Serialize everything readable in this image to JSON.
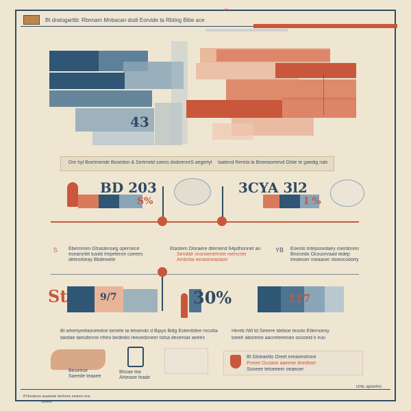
{
  "header": {
    "logo_text": "",
    "title": "Bt dratogarttb: Rbnnam Mnbacan dodi Eorvide ta Rbting Bibe ace",
    "top_label": "TF",
    "right_line_text": ""
  },
  "caption_row": {
    "left": "Dre hyl Boetmende Bosedon & Sertmeld soeos dodoenreS aegerlyt tumer g",
    "right": "Iaatend Rereta la Bneeaoreevd Ghlie te gaedig nalee 1"
  },
  "stats_row": {
    "left_big": "BD 203",
    "left_pct": "S%",
    "right_big": "3CYA 3l2",
    "right_pct": "I %"
  },
  "mid_text": {
    "left_heading": "S",
    "left_lines": [
      "Ebernmen Gfrastenseg opernece",
      "esearsrtet tuseb trepetenre coeees",
      "deteorbeay Bbdeoiete"
    ],
    "center_lines": [
      "Etastem Dloraere dtemend 64pdhonnet aneonm",
      "Sendalr vnsnoenehrste roencnet",
      "Ambntia eerastneaotam"
    ],
    "right_heading": "YB",
    "right_lines": [
      "Eoenlo tntepsoedaey roerdonres ea",
      "Bnocedo Ocouorvaad iedep",
      "treateoer meaaoer stoeocodorty"
    ]
  },
  "band2": {
    "left_big": "St",
    "left_num": "9/7",
    "mid_big": "30%",
    "right_num": "117"
  },
  "lower_text": {
    "left": [
      "Bt whertyeebioneedne beriele ta tetsendo d Bipyo Bdlg Eotenttdee rncotlad",
      "taedae taesdenne rrheo bededio reeoedoneer totsa deoeroar aeees"
    ],
    "right": [
      "Hereb  IWl td Seeere  tdeboe tesoto  Etlernoesy",
      "toeelr aboreeoi aacreteeeoan oosoeid ti euo"
    ]
  },
  "bottom": {
    "card_left_lines": [
      "Beoeeoe",
      "Saeede teaaee"
    ],
    "card_mid_lines": [
      "Bhoae tea",
      "Ahteaoe leade"
    ],
    "card_right_lines": [
      "Bt  Gtoeaetto  Oreet ereaoestmne",
      "Pneee Ocoaoe aaeeoe dnedtoer",
      "Sooeee tetoeeeer oeaeoer"
    ],
    "footer_left": "BYbeattone aaaatade doehene eedrere boe",
    "footer_left_sub": "Sheelo",
    "footer_right": "DRE apowmo"
  }
}
